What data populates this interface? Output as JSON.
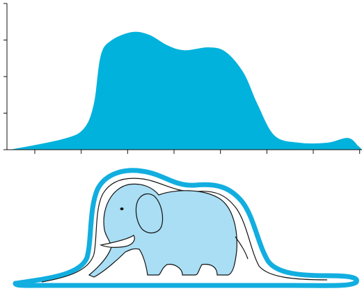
{
  "chart_data": {
    "type": "area",
    "x": [
      0.47,
      1.6,
      2.05,
      2.27,
      2.42,
      2.65,
      3.1,
      3.47,
      3.85,
      4.22,
      4.75,
      5.12,
      5.5,
      5.8,
      6.17,
      6.7,
      7.3,
      7.75,
      7.97,
      8.05
    ],
    "values": [
      0,
      0.29,
      0.57,
      1.24,
      2.57,
      2.99,
      3.22,
      3.14,
      2.86,
      2.72,
      2.8,
      2.67,
      2.1,
      1.24,
      0.38,
      0.19,
      0.19,
      0.32,
      0.1,
      0
    ],
    "color": "#00b2dc",
    "xlim": [
      0.4,
      8.05
    ],
    "xticks": [
      1,
      2,
      3,
      4,
      5,
      6,
      7,
      8
    ],
    "ylim": [
      0,
      4
    ],
    "yticks": [
      0,
      1,
      2,
      3,
      4
    ]
  }
}
